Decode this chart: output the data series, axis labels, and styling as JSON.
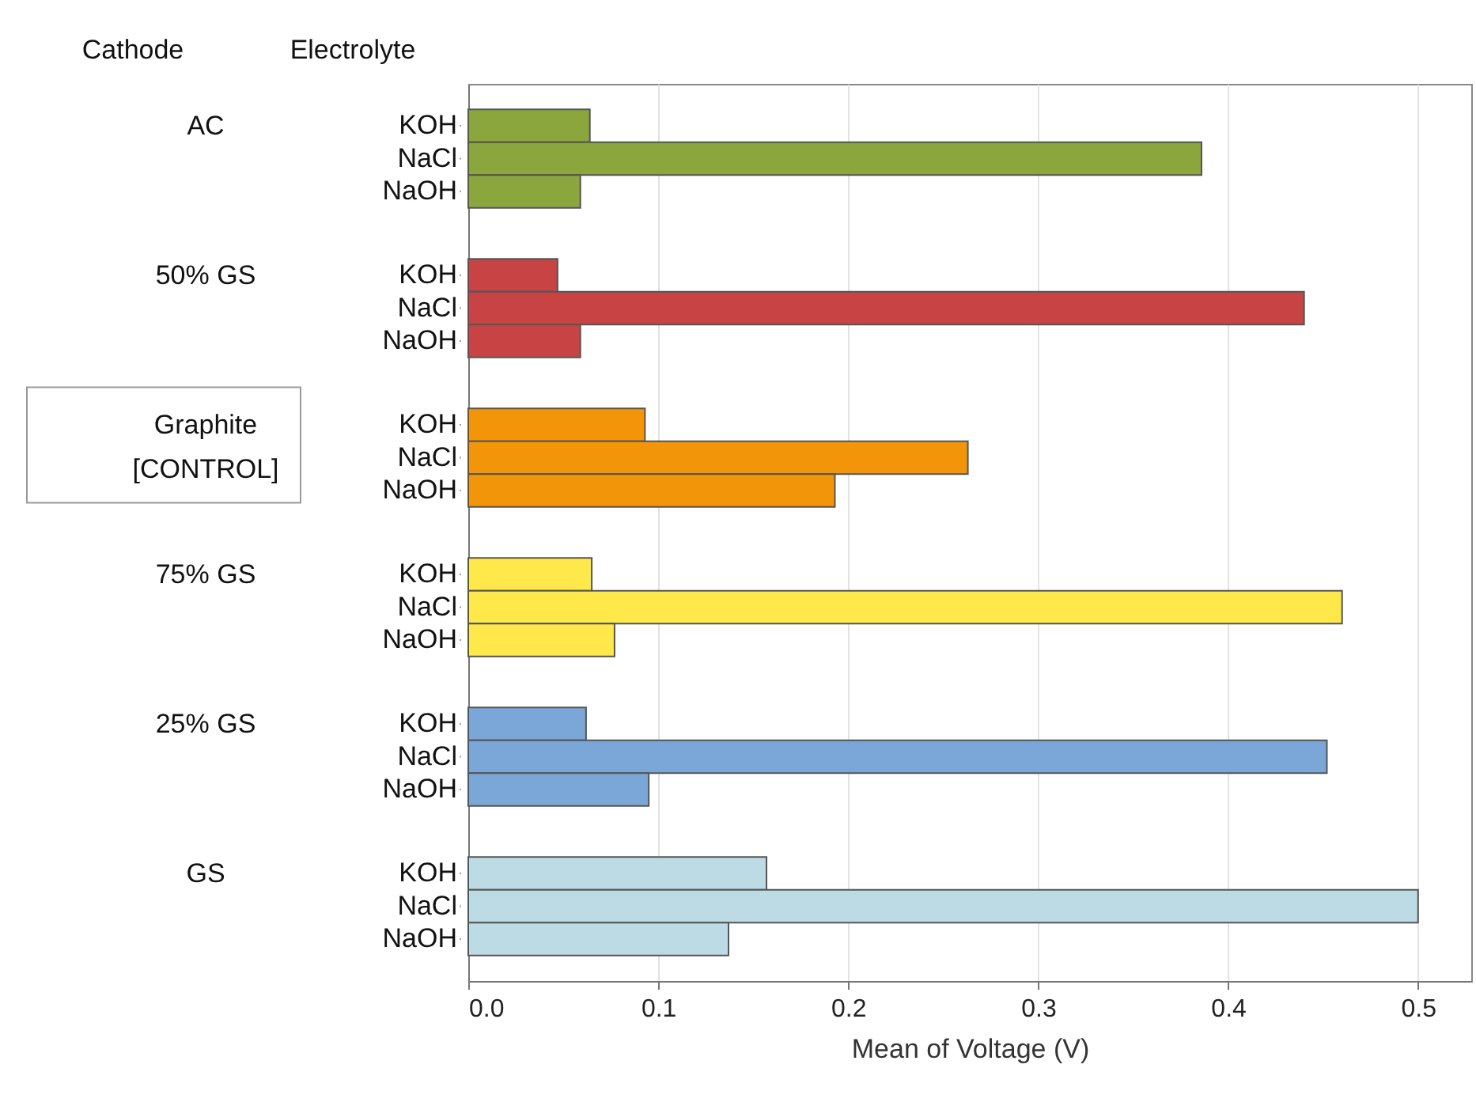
{
  "chart_data": {
    "type": "bar",
    "orientation": "horizontal",
    "categories": [
      "AC",
      "50% GS",
      "Graphite\n[CONTROL]",
      "75% GS",
      "25% GS",
      "GS"
    ],
    "ylabel": "Cathode",
    "legend_title": "Electrolyte",
    "xlabel": "Mean of Voltage (V)",
    "series": [
      {
        "name": "KOH",
        "colors": [
          "#8aa63c",
          "#c84444",
          "#f39508",
          "#ffe94a",
          "#7ba6d8",
          "#bddbe4"
        ],
        "values": [
          0.064,
          0.047,
          0.093,
          0.065,
          0.062,
          0.157
        ]
      },
      {
        "name": "NaCl",
        "colors": [
          "#8aa63c",
          "#c84444",
          "#f39508",
          "#ffe94a",
          "#7ba6d8",
          "#bddbe4"
        ],
        "values": [
          0.386,
          0.44,
          0.263,
          0.46,
          0.452,
          0.5
        ]
      },
      {
        "name": "NaOH",
        "colors": [
          "#8aa63c",
          "#c84444",
          "#f39508",
          "#ffe94a",
          "#7ba6d8",
          "#bddbe4"
        ],
        "values": [
          0.059,
          0.059,
          0.193,
          0.077,
          0.095,
          0.137
        ]
      }
    ],
    "xlim": [
      0,
      0.528
    ],
    "xticks": [
      {
        "value": 0,
        "label": "0.0"
      },
      {
        "value": 0.1,
        "label": "0.1"
      },
      {
        "value": 0.2,
        "label": "0.2"
      },
      {
        "value": 0.3,
        "label": "0.3"
      },
      {
        "value": 0.4,
        "label": "0.4"
      },
      {
        "value": 0.5,
        "label": "0.5"
      }
    ],
    "grid": "x"
  }
}
